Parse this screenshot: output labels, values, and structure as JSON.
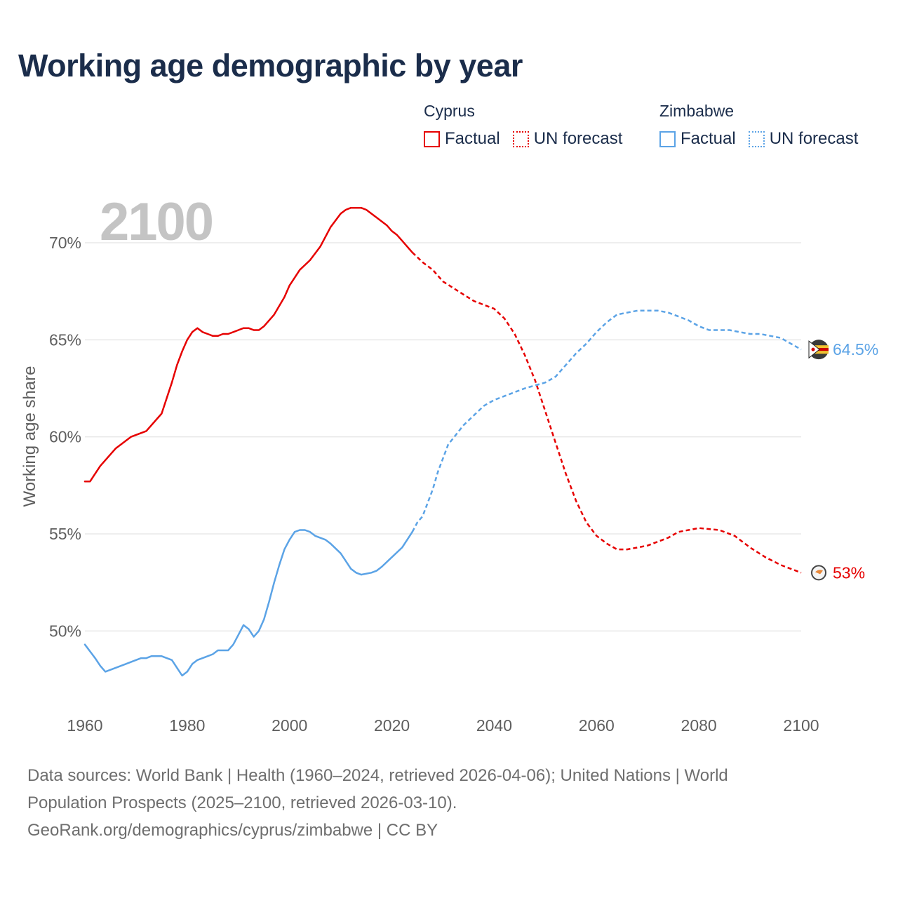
{
  "title": "Working age demographic by year",
  "legend": {
    "groups": [
      {
        "name": "Cyprus",
        "factual_label": "Factual",
        "forecast_label": "UN forecast"
      },
      {
        "name": "Zimbabwe",
        "factual_label": "Factual",
        "forecast_label": "UN forecast"
      }
    ]
  },
  "colors": {
    "cyprus": "#e60000",
    "zimbabwe": "#5ba3e6",
    "title": "#1b2d4b",
    "year_watermark": "#c4c4c4"
  },
  "footer": {
    "line1": "Data sources: World Bank | Health (1960–2024, retrieved 2026-04-06); United Nations | World",
    "line2": "Population Prospects (2025–2100, retrieved 2026-03-10).",
    "line3": "GeoRank.org/demographics/cyprus/zimbabwe | CC BY"
  },
  "chart_data": {
    "type": "line",
    "title": "Working age demographic by year",
    "current_year_label": "2100",
    "xlabel": "",
    "ylabel": "Working age share",
    "xlim": [
      1960,
      2100
    ],
    "ylim": [
      46,
      73
    ],
    "x_ticks": [
      1960,
      1980,
      2000,
      2020,
      2040,
      2060,
      2080,
      2100
    ],
    "x_tick_labels": [
      "1960",
      "1980",
      "2000",
      "2020",
      "2040",
      "2060",
      "2080",
      "2100"
    ],
    "y_ticks": [
      50,
      55,
      60,
      65,
      70
    ],
    "y_tick_labels": [
      "50%",
      "55%",
      "60%",
      "65%",
      "70%"
    ],
    "grid": true,
    "factual_end": 2024,
    "series": [
      {
        "name": "Cyprus",
        "color": "#e60000",
        "end_label": "53%",
        "points": [
          [
            1960,
            57.7
          ],
          [
            1961,
            57.7
          ],
          [
            1963,
            58.5
          ],
          [
            1966,
            59.4
          ],
          [
            1969,
            60.0
          ],
          [
            1972,
            60.3
          ],
          [
            1975,
            61.2
          ],
          [
            1977,
            62.8
          ],
          [
            1978,
            63.7
          ],
          [
            1979,
            64.4
          ],
          [
            1980,
            65.0
          ],
          [
            1981,
            65.4
          ],
          [
            1982,
            65.6
          ],
          [
            1983,
            65.4
          ],
          [
            1984,
            65.3
          ],
          [
            1985,
            65.2
          ],
          [
            1986,
            65.2
          ],
          [
            1987,
            65.3
          ],
          [
            1988,
            65.3
          ],
          [
            1989,
            65.4
          ],
          [
            1990,
            65.5
          ],
          [
            1991,
            65.6
          ],
          [
            1992,
            65.6
          ],
          [
            1993,
            65.5
          ],
          [
            1994,
            65.5
          ],
          [
            1995,
            65.7
          ],
          [
            1997,
            66.3
          ],
          [
            1999,
            67.2
          ],
          [
            2000,
            67.8
          ],
          [
            2002,
            68.6
          ],
          [
            2004,
            69.1
          ],
          [
            2006,
            69.8
          ],
          [
            2008,
            70.8
          ],
          [
            2010,
            71.5
          ],
          [
            2011,
            71.7
          ],
          [
            2012,
            71.8
          ],
          [
            2014,
            71.8
          ],
          [
            2015,
            71.7
          ],
          [
            2017,
            71.3
          ],
          [
            2019,
            70.9
          ],
          [
            2020,
            70.6
          ],
          [
            2021,
            70.4
          ],
          [
            2022,
            70.1
          ],
          [
            2024,
            69.5
          ],
          [
            2026,
            69.0
          ],
          [
            2028,
            68.6
          ],
          [
            2030,
            68.0
          ],
          [
            2033,
            67.5
          ],
          [
            2036,
            67.0
          ],
          [
            2040,
            66.6
          ],
          [
            2042,
            66.1
          ],
          [
            2044,
            65.3
          ],
          [
            2046,
            64.2
          ],
          [
            2048,
            62.9
          ],
          [
            2050,
            61.3
          ],
          [
            2052,
            59.7
          ],
          [
            2054,
            58.1
          ],
          [
            2056,
            56.7
          ],
          [
            2058,
            55.6
          ],
          [
            2060,
            54.9
          ],
          [
            2062,
            54.5
          ],
          [
            2064,
            54.2
          ],
          [
            2066,
            54.2
          ],
          [
            2068,
            54.3
          ],
          [
            2070,
            54.4
          ],
          [
            2074,
            54.8
          ],
          [
            2076,
            55.1
          ],
          [
            2080,
            55.3
          ],
          [
            2084,
            55.2
          ],
          [
            2087,
            54.9
          ],
          [
            2090,
            54.3
          ],
          [
            2093,
            53.8
          ],
          [
            2096,
            53.4
          ],
          [
            2099,
            53.1
          ],
          [
            2100,
            53.0
          ]
        ]
      },
      {
        "name": "Zimbabwe",
        "color": "#5ba3e6",
        "end_label": "64.5%",
        "points": [
          [
            1960,
            49.3
          ],
          [
            1962,
            48.6
          ],
          [
            1963,
            48.2
          ],
          [
            1964,
            47.9
          ],
          [
            1966,
            48.1
          ],
          [
            1968,
            48.3
          ],
          [
            1970,
            48.5
          ],
          [
            1971,
            48.6
          ],
          [
            1972,
            48.6
          ],
          [
            1973,
            48.7
          ],
          [
            1975,
            48.7
          ],
          [
            1977,
            48.5
          ],
          [
            1978,
            48.1
          ],
          [
            1979,
            47.7
          ],
          [
            1980,
            47.9
          ],
          [
            1981,
            48.3
          ],
          [
            1982,
            48.5
          ],
          [
            1984,
            48.7
          ],
          [
            1985,
            48.8
          ],
          [
            1986,
            49.0
          ],
          [
            1988,
            49.0
          ],
          [
            1989,
            49.3
          ],
          [
            1990,
            49.8
          ],
          [
            1991,
            50.3
          ],
          [
            1992,
            50.1
          ],
          [
            1993,
            49.7
          ],
          [
            1994,
            50.0
          ],
          [
            1995,
            50.6
          ],
          [
            1996,
            51.5
          ],
          [
            1997,
            52.5
          ],
          [
            1998,
            53.4
          ],
          [
            1999,
            54.2
          ],
          [
            2000,
            54.7
          ],
          [
            2001,
            55.1
          ],
          [
            2002,
            55.2
          ],
          [
            2003,
            55.2
          ],
          [
            2004,
            55.1
          ],
          [
            2005,
            54.9
          ],
          [
            2007,
            54.7
          ],
          [
            2008,
            54.5
          ],
          [
            2010,
            54.0
          ],
          [
            2011,
            53.6
          ],
          [
            2012,
            53.2
          ],
          [
            2013,
            53.0
          ],
          [
            2014,
            52.9
          ],
          [
            2016,
            53.0
          ],
          [
            2017,
            53.1
          ],
          [
            2018,
            53.3
          ],
          [
            2020,
            53.8
          ],
          [
            2022,
            54.3
          ],
          [
            2024,
            55.1
          ],
          [
            2025,
            55.6
          ],
          [
            2026,
            55.9
          ],
          [
            2028,
            57.3
          ],
          [
            2029,
            58.2
          ],
          [
            2031,
            59.6
          ],
          [
            2034,
            60.6
          ],
          [
            2036,
            61.1
          ],
          [
            2038,
            61.6
          ],
          [
            2040,
            61.9
          ],
          [
            2042,
            62.1
          ],
          [
            2044,
            62.3
          ],
          [
            2046,
            62.5
          ],
          [
            2050,
            62.8
          ],
          [
            2052,
            63.1
          ],
          [
            2054,
            63.7
          ],
          [
            2056,
            64.3
          ],
          [
            2058,
            64.8
          ],
          [
            2060,
            65.4
          ],
          [
            2062,
            65.9
          ],
          [
            2064,
            66.3
          ],
          [
            2066,
            66.4
          ],
          [
            2068,
            66.5
          ],
          [
            2072,
            66.5
          ],
          [
            2074,
            66.4
          ],
          [
            2076,
            66.2
          ],
          [
            2078,
            66.0
          ],
          [
            2080,
            65.7
          ],
          [
            2082,
            65.5
          ],
          [
            2086,
            65.5
          ],
          [
            2088,
            65.4
          ],
          [
            2090,
            65.3
          ],
          [
            2092,
            65.3
          ],
          [
            2094,
            65.2
          ],
          [
            2096,
            65.1
          ],
          [
            2098,
            64.8
          ],
          [
            2100,
            64.5
          ]
        ]
      }
    ]
  }
}
